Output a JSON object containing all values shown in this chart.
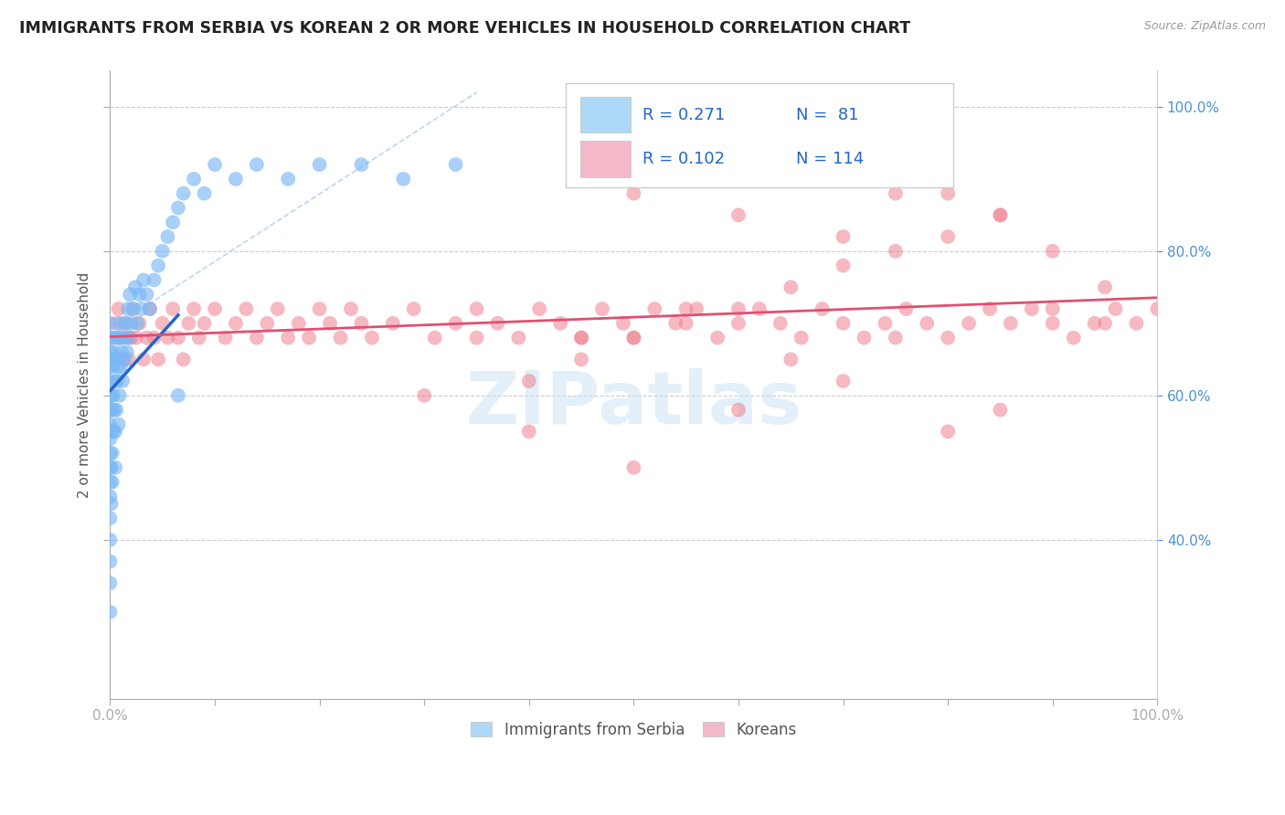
{
  "title": "IMMIGRANTS FROM SERBIA VS KOREAN 2 OR MORE VEHICLES IN HOUSEHOLD CORRELATION CHART",
  "source": "Source: ZipAtlas.com",
  "ylabel": "2 or more Vehicles in Household",
  "xlim": [
    0.0,
    1.0
  ],
  "ylim": [
    0.18,
    1.05
  ],
  "xtick_labels": [
    "0.0%",
    "",
    "",
    "",
    "",
    "",
    "",
    "",
    "",
    "",
    "100.0%"
  ],
  "xtick_vals": [
    0.0,
    0.1,
    0.2,
    0.3,
    0.4,
    0.5,
    0.6,
    0.7,
    0.8,
    0.9,
    1.0
  ],
  "ytick_right_labels": [
    "40.0%",
    "60.0%",
    "80.0%",
    "100.0%"
  ],
  "ytick_vals": [
    0.4,
    0.6,
    0.8,
    1.0
  ],
  "legend_serbia_color": "#add8f7",
  "legend_korean_color": "#f5b8c8",
  "serbia_dot_color": "#7ab8f5",
  "korean_dot_color": "#f08090",
  "serbia_line_color": "#2266cc",
  "korean_line_color": "#e05070",
  "watermark": "ZIPatlas",
  "serbia_x": [
    0.0,
    0.0,
    0.0,
    0.0,
    0.0,
    0.0,
    0.0,
    0.0,
    0.0,
    0.0,
    0.0,
    0.0,
    0.0,
    0.0,
    0.0,
    0.0,
    0.0,
    0.0,
    0.001,
    0.001,
    0.001,
    0.001,
    0.002,
    0.002,
    0.002,
    0.002,
    0.003,
    0.003,
    0.003,
    0.004,
    0.004,
    0.005,
    0.005,
    0.005,
    0.005,
    0.006,
    0.006,
    0.007,
    0.007,
    0.008,
    0.008,
    0.009,
    0.009,
    0.01,
    0.01,
    0.011,
    0.012,
    0.013,
    0.014,
    0.015,
    0.016,
    0.017,
    0.018,
    0.019,
    0.02,
    0.022,
    0.024,
    0.026,
    0.028,
    0.03,
    0.032,
    0.035,
    0.038,
    0.042,
    0.046,
    0.05,
    0.055,
    0.06,
    0.065,
    0.07,
    0.08,
    0.09,
    0.1,
    0.12,
    0.14,
    0.17,
    0.2,
    0.24,
    0.28,
    0.33,
    0.065
  ],
  "serbia_y": [
    0.3,
    0.34,
    0.37,
    0.4,
    0.43,
    0.46,
    0.48,
    0.5,
    0.52,
    0.54,
    0.56,
    0.58,
    0.6,
    0.62,
    0.64,
    0.66,
    0.68,
    0.7,
    0.45,
    0.5,
    0.55,
    0.6,
    0.48,
    0.52,
    0.58,
    0.64,
    0.55,
    0.6,
    0.66,
    0.58,
    0.65,
    0.5,
    0.55,
    0.62,
    0.68,
    0.58,
    0.65,
    0.62,
    0.68,
    0.56,
    0.64,
    0.6,
    0.68,
    0.64,
    0.7,
    0.66,
    0.62,
    0.68,
    0.65,
    0.7,
    0.66,
    0.72,
    0.68,
    0.74,
    0.7,
    0.72,
    0.75,
    0.7,
    0.74,
    0.72,
    0.76,
    0.74,
    0.72,
    0.76,
    0.78,
    0.8,
    0.82,
    0.84,
    0.86,
    0.88,
    0.9,
    0.88,
    0.92,
    0.9,
    0.92,
    0.9,
    0.92,
    0.92,
    0.9,
    0.92,
    0.6
  ],
  "korean_x": [
    0.002,
    0.004,
    0.006,
    0.008,
    0.01,
    0.012,
    0.014,
    0.016,
    0.018,
    0.02,
    0.022,
    0.025,
    0.028,
    0.032,
    0.035,
    0.038,
    0.042,
    0.046,
    0.05,
    0.055,
    0.06,
    0.065,
    0.07,
    0.075,
    0.08,
    0.085,
    0.09,
    0.1,
    0.11,
    0.12,
    0.13,
    0.14,
    0.15,
    0.16,
    0.17,
    0.18,
    0.19,
    0.2,
    0.21,
    0.22,
    0.23,
    0.24,
    0.25,
    0.27,
    0.29,
    0.31,
    0.33,
    0.35,
    0.37,
    0.39,
    0.41,
    0.43,
    0.45,
    0.47,
    0.49,
    0.5,
    0.52,
    0.54,
    0.56,
    0.58,
    0.6,
    0.62,
    0.64,
    0.66,
    0.68,
    0.7,
    0.72,
    0.74,
    0.76,
    0.78,
    0.8,
    0.82,
    0.84,
    0.86,
    0.88,
    0.9,
    0.92,
    0.94,
    0.96,
    0.98,
    1.0,
    0.3,
    0.35,
    0.4,
    0.45,
    0.5,
    0.55,
    0.6,
    0.65,
    0.7,
    0.75,
    0.8,
    0.85,
    0.9,
    0.95,
    0.4,
    0.5,
    0.6,
    0.7,
    0.8,
    0.9,
    0.5,
    0.6,
    0.7,
    0.8,
    0.55,
    0.65,
    0.75,
    0.85,
    0.45,
    0.55,
    0.65,
    0.75,
    0.85,
    0.95
  ],
  "korean_y": [
    0.68,
    0.65,
    0.7,
    0.72,
    0.68,
    0.65,
    0.7,
    0.68,
    0.65,
    0.68,
    0.72,
    0.68,
    0.7,
    0.65,
    0.68,
    0.72,
    0.68,
    0.65,
    0.7,
    0.68,
    0.72,
    0.68,
    0.65,
    0.7,
    0.72,
    0.68,
    0.7,
    0.72,
    0.68,
    0.7,
    0.72,
    0.68,
    0.7,
    0.72,
    0.68,
    0.7,
    0.68,
    0.72,
    0.7,
    0.68,
    0.72,
    0.7,
    0.68,
    0.7,
    0.72,
    0.68,
    0.7,
    0.72,
    0.7,
    0.68,
    0.72,
    0.7,
    0.68,
    0.72,
    0.7,
    0.68,
    0.72,
    0.7,
    0.72,
    0.68,
    0.7,
    0.72,
    0.7,
    0.68,
    0.72,
    0.7,
    0.68,
    0.7,
    0.72,
    0.7,
    0.68,
    0.7,
    0.72,
    0.7,
    0.72,
    0.7,
    0.68,
    0.7,
    0.72,
    0.7,
    0.72,
    0.6,
    0.68,
    0.62,
    0.65,
    0.68,
    0.7,
    0.72,
    0.75,
    0.78,
    0.8,
    0.82,
    0.85,
    0.8,
    0.75,
    0.55,
    0.5,
    0.58,
    0.62,
    0.55,
    0.72,
    0.88,
    0.85,
    0.82,
    0.88,
    0.9,
    0.92,
    0.88,
    0.85,
    0.68,
    0.72,
    0.65,
    0.68,
    0.58,
    0.7
  ]
}
